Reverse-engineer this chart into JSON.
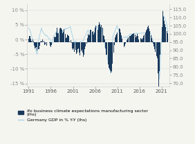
{
  "title": "",
  "left_ylim": [
    -16,
    12
  ],
  "right_ylim": [
    68,
    118
  ],
  "left_yticks": [
    10,
    5,
    0,
    -5,
    -10,
    -15
  ],
  "right_yticks": [
    115.0,
    110.0,
    105.0,
    100.0,
    95.0,
    90.0,
    85.0,
    80.0,
    75.0,
    70.0
  ],
  "xtick_labels": [
    "1991",
    "1996",
    "2001",
    "2006",
    "2011",
    "2016",
    "2021"
  ],
  "bar_color": "#1a3a5c",
  "line_color": "#a8d4e6",
  "legend_bar_label": "ifo business climate expectations manufacturing sector\n(rhs)",
  "legend_line_label": "Germany GDP in % Y-Y (lhs)",
  "background_color": "#f5f5f0"
}
